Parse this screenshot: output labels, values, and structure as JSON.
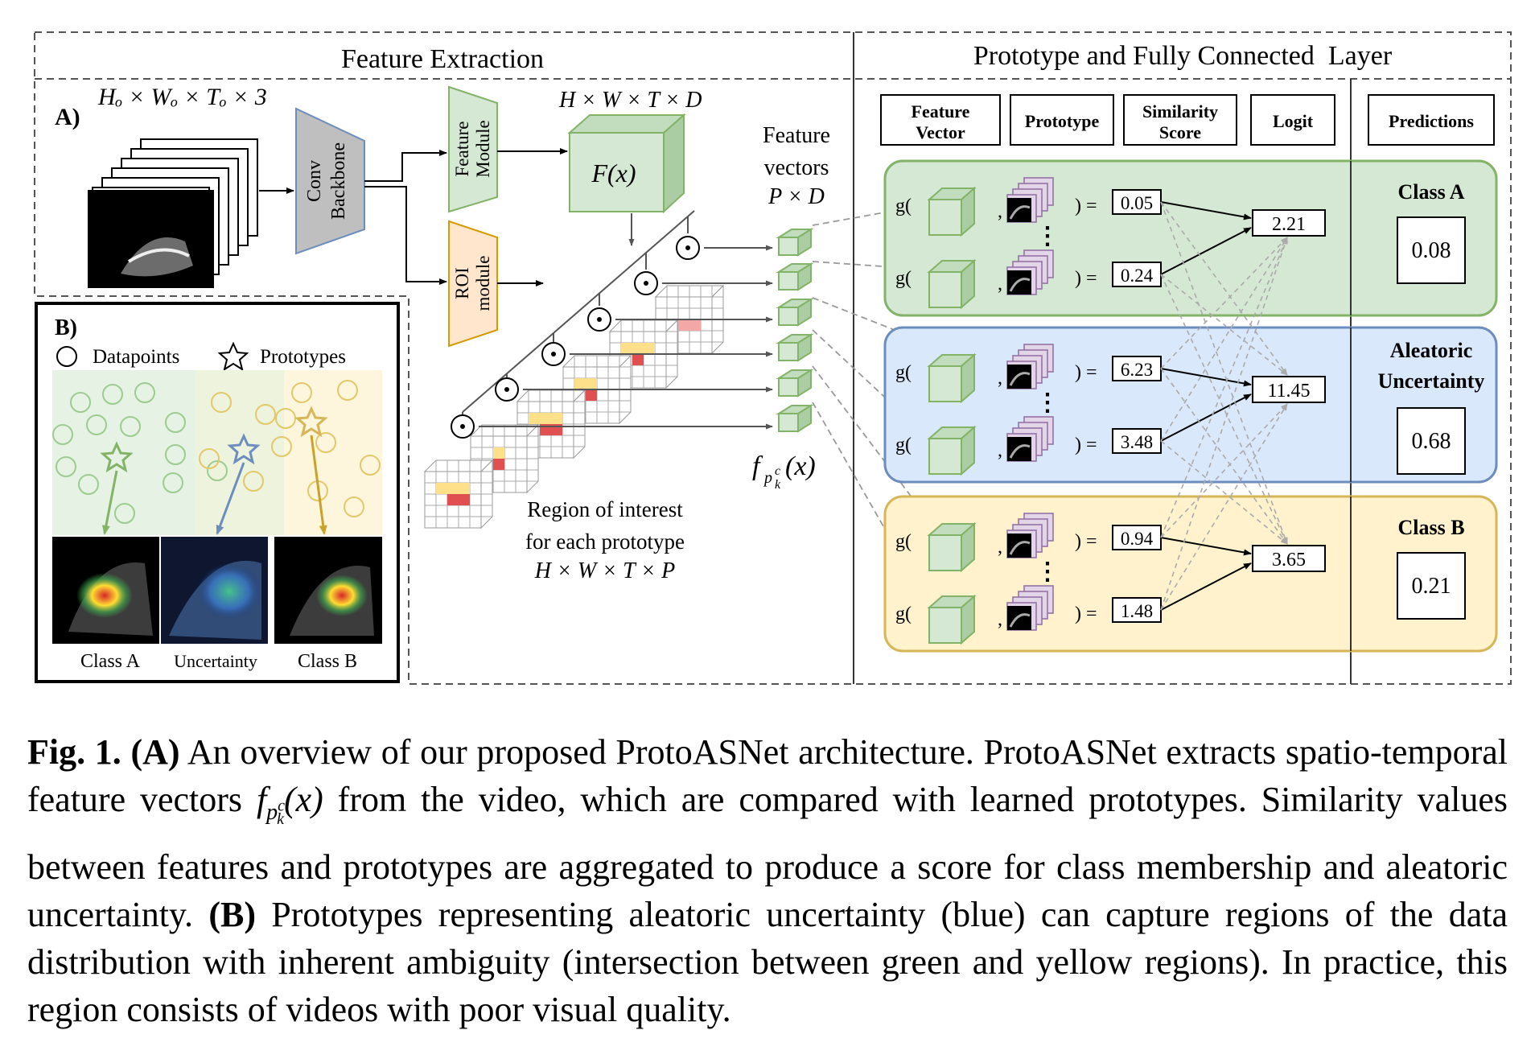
{
  "panel_a": {
    "label": "A)",
    "section_feature_extraction": "Feature Extraction",
    "section_prototype_layer": "Prototype and Fully Connected  Layer",
    "input_dims": "Hₒ × Wₒ × Tₒ × 3",
    "backbone_line1": "Conv",
    "backbone_line2": "Backbone",
    "feature_module_line1": "Feature",
    "feature_module_line2": "Module",
    "roi_module_line1": "ROI",
    "roi_module_line2": "module",
    "feature_dims": "H × W × T × D",
    "feature_map": "F(x)",
    "feature_vectors_line1": "Feature",
    "feature_vectors_line2": "vectors",
    "feature_vectors_dims": "P × D",
    "fpk_symbol": "f",
    "fpk_arg": "(x)",
    "roi_caption_line1": "Region of interest",
    "roi_caption_line2": "for each prototype",
    "roi_caption_dims": "H × W × T × P",
    "columns": {
      "feature_vector_line1": "Feature",
      "feature_vector_line2": "Vector",
      "prototype": "Prototype",
      "similarity_line1": "Similarity",
      "similarity_line2": "Score",
      "logit": "Logit",
      "predictions": "Predictions"
    },
    "g_open": "g(",
    "comma": ",",
    "close_eq": ") =",
    "vdots": "⋮",
    "groups": [
      {
        "class_line1": "Class A",
        "class_line2": "",
        "scores": [
          "0.05",
          "0.24"
        ],
        "logit": "2.21",
        "prediction": "0.08",
        "color": "#d5e8d4",
        "border": "#82b366"
      },
      {
        "class_line1": "Aleatoric",
        "class_line2": "Uncertainty",
        "scores": [
          "6.23",
          "3.48"
        ],
        "logit": "11.45",
        "prediction": "0.68",
        "color": "#dae8fc",
        "border": "#6c8ebf"
      },
      {
        "class_line1": "Class B",
        "class_line2": "",
        "scores": [
          "0.94",
          "1.48"
        ],
        "logit": "3.65",
        "prediction": "0.21",
        "color": "#fff2cc",
        "border": "#d6b656"
      }
    ]
  },
  "panel_b": {
    "label": "B)",
    "legend_datapoints": "Datapoints",
    "legend_prototypes": "Prototypes",
    "class_a": "Class A",
    "uncertainty": "Uncertainty",
    "class_b": "Class B"
  },
  "caption": {
    "fig_label": "Fig. 1.",
    "a_label": "(A)",
    "text_1": " An overview of our proposed ProtoASNet architecture. ProtoASNet extracts spatio-temporal feature vectors ",
    "math_f": "f",
    "math_sub": "p",
    "math_sup": "c",
    "math_subsub": "k",
    "math_arg": "(x)",
    "text_2": " from the video, which are compared with learned prototypes. Similarity values between features and prototypes are aggregated to produce a score for class membership and aleatoric uncertainty. ",
    "b_label": "(B)",
    "text_3": " Prototypes representing aleatoric uncertainty (blue) can capture regions of the data distribution with inherent ambiguity (intersection between green and yellow regions). In practice, this region consists of videos with poor visual quality."
  }
}
